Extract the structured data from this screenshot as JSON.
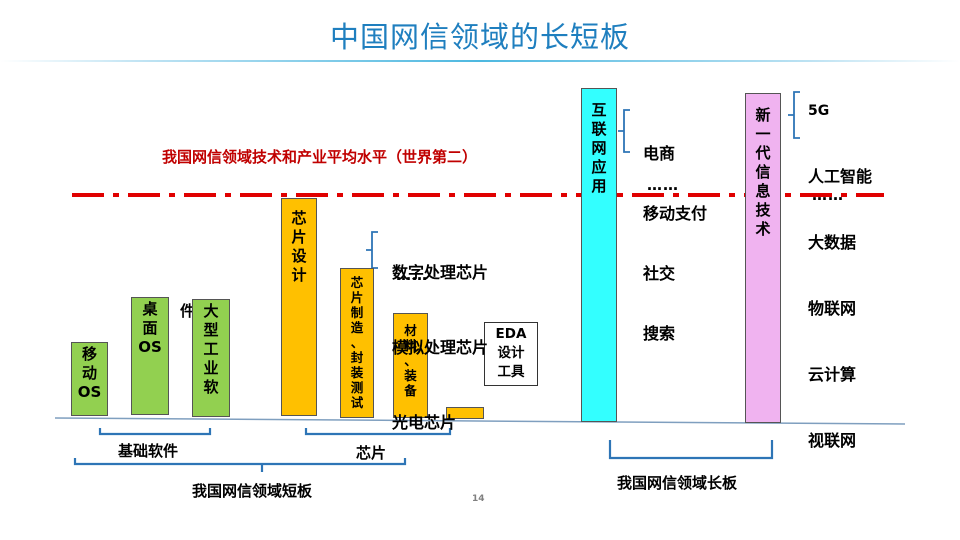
{
  "title": "中国网信领域的长短板",
  "average_line": {
    "label": "我国网信领域技术和产业平均水平（世界第二）",
    "color": "#c00000"
  },
  "bars": [
    {
      "id": "mobile-os",
      "label": "移\n动\nOS",
      "color": "#92d050"
    },
    {
      "id": "desktop-os",
      "label": "桌\n面\nOS",
      "color": "#92d050"
    },
    {
      "id": "industrial-software",
      "label": "大\n型\n工\n业\n软",
      "side_char": "件",
      "color": "#92d050"
    },
    {
      "id": "chip-design",
      "label": "芯\n片\n设\n计",
      "color": "#ffc000"
    },
    {
      "id": "chip-manufacturing",
      "label": "芯\n片\n制\n造\n、\n封\n装\n测\n试",
      "color": "#ffc000"
    },
    {
      "id": "materials-equipment",
      "label": "材\n料\n、\n装\n备",
      "color": "#ffc000"
    },
    {
      "id": "eda",
      "label": "",
      "color": "#ffc000"
    },
    {
      "id": "internet-apps",
      "label": "互\n联\n网\n应\n用",
      "color": "#33ffff"
    },
    {
      "id": "new-gen-it",
      "label": "新\n一\n代\n信\n息\n技\n术",
      "color": "#f0b3f0"
    }
  ],
  "eda_box": {
    "line1": "EDA",
    "line2": "设计",
    "line3": "工具"
  },
  "chip_list": {
    "items": [
      "数字处理芯片",
      "模拟处理芯片",
      "光电芯片"
    ],
    "more": "……"
  },
  "internet_list": {
    "items": [
      "电商",
      "移动支付",
      "社交",
      "搜索"
    ],
    "more": "……"
  },
  "newtech_list": {
    "items": [
      "5G",
      "人工智能",
      "大数据",
      "物联网",
      "云计算",
      "视联网"
    ],
    "more": "……"
  },
  "groups": {
    "basic_software": "基础软件",
    "chips": "芯片",
    "short_board": "我国网信领域短板",
    "long_board": "我国网信领域长板"
  },
  "page_number": "14",
  "colors": {
    "title": "#1f7fbf",
    "bracket": "#2e75b6",
    "baseline": "#7f9fbf"
  }
}
